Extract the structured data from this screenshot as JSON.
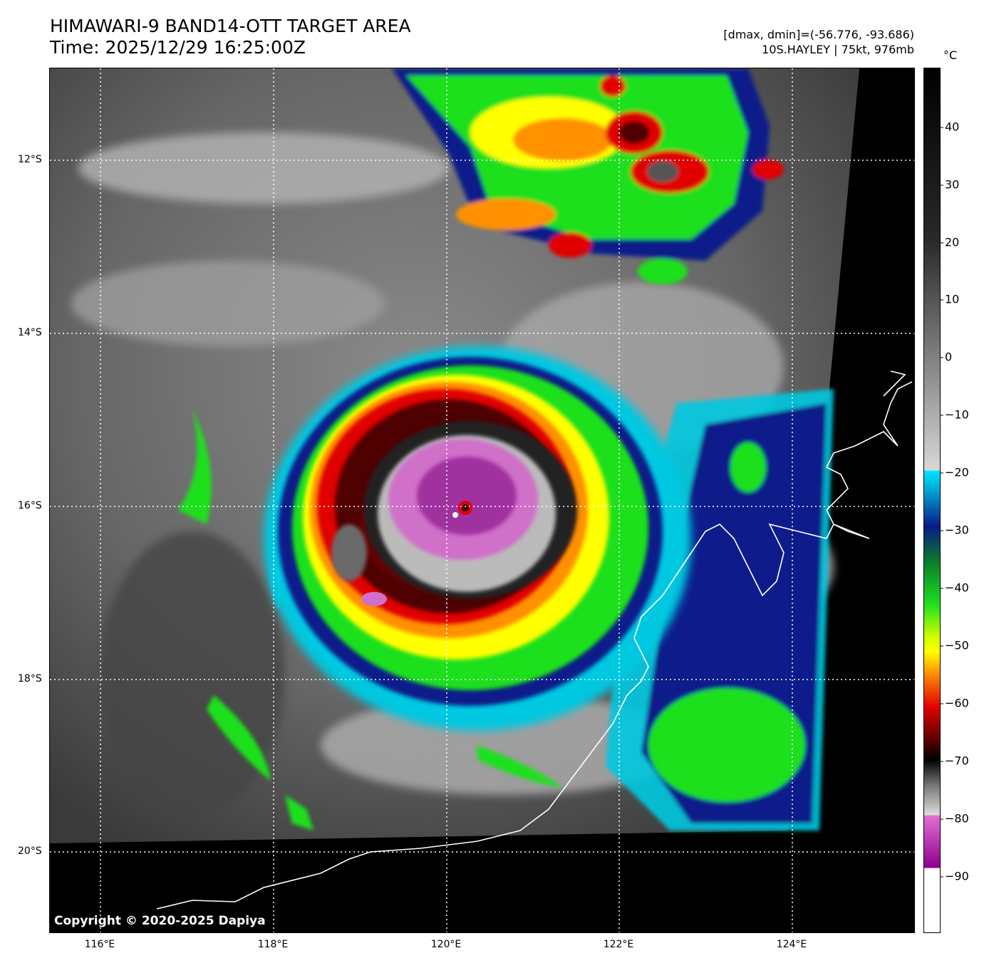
{
  "title": {
    "line1": "HIMAWARI-9 BAND14-OTT TARGET AREA",
    "line2": "Time: 2025/12/29 16:25:00Z"
  },
  "info": {
    "range": "[dmax, dmin]=(-56.776, -93.686)",
    "storm": "10S.HAYLEY | 75kt, 976mb"
  },
  "copyright": "Copyright © 2020-2025 Dapiya",
  "lat_labels": [
    "12°S",
    "14°S",
    "16°S",
    "18°S",
    "20°S"
  ],
  "lon_labels": [
    "116°E",
    "118°E",
    "120°E",
    "122°E",
    "124°E"
  ],
  "colorbar": {
    "unit": "°C",
    "ticks": [
      "40",
      "30",
      "20",
      "10",
      "0",
      "−10",
      "−20",
      "−30",
      "−40",
      "−50",
      "−60",
      "−70",
      "−80",
      "−90"
    ],
    "colors": {
      "warm": "#000000",
      "gray_light": "#d8d8d8",
      "cyan": "#00e5ff",
      "blue": "#0a1a8a",
      "green": "#1ee01e",
      "yellow": "#ffff00",
      "orange": "#ff9000",
      "red": "#e00000",
      "darkred": "#500000",
      "magenta": "#e070d0",
      "purple": "#900090",
      "white": "#ffffff"
    }
  }
}
